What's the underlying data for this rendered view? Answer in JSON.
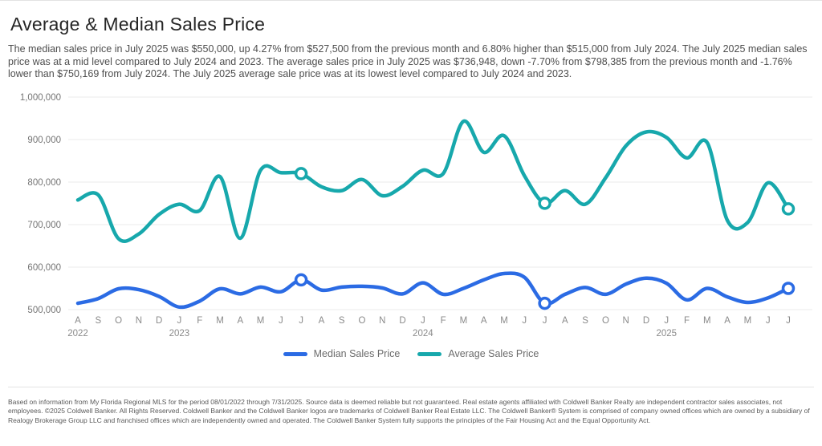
{
  "header": {
    "title": "Average & Median Sales Price",
    "description": "The median sales price in July 2025 was $550,000, up 4.27% from $527,500 from the previous month and 6.80% higher than $515,000 from July 2024. The July 2025 median sales price was at a mid level compared to July 2024 and 2023. The average sales price in July 2025 was $736,948, down -7.70% from $798,385 from the previous month and -1.76% lower than $750,169 from July 2024. The July 2025 average sale price was at its lowest level compared to July 2024 and 2023."
  },
  "chart_data": {
    "type": "line",
    "title": "Average & Median Sales Price",
    "categories": [
      "A",
      "S",
      "O",
      "N",
      "D",
      "J",
      "F",
      "M",
      "A",
      "M",
      "J",
      "J",
      "A",
      "S",
      "O",
      "N",
      "D",
      "J",
      "F",
      "M",
      "A",
      "M",
      "J",
      "J",
      "A",
      "S",
      "O",
      "N",
      "D",
      "J",
      "F",
      "M",
      "A",
      "M",
      "J",
      "J"
    ],
    "year_labels": [
      {
        "index": 0,
        "label": "2022"
      },
      {
        "index": 5,
        "label": "2023"
      },
      {
        "index": 17,
        "label": "2024"
      },
      {
        "index": 29,
        "label": "2025"
      }
    ],
    "series": [
      {
        "name": "Median Sales Price",
        "color": "#2B6BE4",
        "values": [
          515000,
          526000,
          549000,
          547000,
          531000,
          506000,
          520000,
          549000,
          537000,
          553000,
          542000,
          570000,
          546000,
          553000,
          555000,
          551000,
          537000,
          563000,
          536000,
          550000,
          570000,
          585000,
          576000,
          515000,
          536000,
          552000,
          536000,
          560000,
          574000,
          562000,
          523000,
          550000,
          530000,
          517000,
          527500,
          550000
        ]
      },
      {
        "name": "Average Sales Price",
        "color": "#17A8AC",
        "values": [
          758000,
          770000,
          667000,
          678000,
          724000,
          748000,
          733000,
          813000,
          668000,
          828000,
          822000,
          820000,
          789000,
          780000,
          806000,
          768000,
          790000,
          828000,
          820000,
          943000,
          870000,
          909000,
          815000,
          750169,
          780000,
          748000,
          810000,
          885000,
          918000,
          905000,
          857000,
          893000,
          710000,
          705000,
          798385,
          736948
        ]
      }
    ],
    "marker_indices": [
      11,
      23,
      35
    ],
    "yticks": [
      1000000,
      900000,
      800000,
      700000,
      600000,
      500000
    ],
    "ylim": [
      500000,
      1000000
    ],
    "grid": true,
    "legend_position": "bottom"
  },
  "footer": {
    "disclaimer": "Based on information from My Florida Regional MLS for the period 08/01/2022 through 7/31/2025. Source data is deemed reliable but not guaranteed. Real estate agents affiliated with Coldwell Banker Realty are independent contractor sales associates, not employees. ©2025 Coldwell Banker. All Rights Reserved. Coldwell Banker and the Coldwell Banker logos are trademarks of Coldwell Banker Real Estate LLC. The Coldwell Banker® System is comprised of company owned offices which are owned by a subsidiary of Realogy Brokerage Group LLC and franchised offices which are independently owned and operated. The Coldwell Banker System fully supports the principles of the Fair Housing Act and the Equal Opportunity Act."
  },
  "colors": {
    "median": "#2B6BE4",
    "average": "#17A8AC",
    "grid": "#ebebeb",
    "axis_text": "#8a8a8a",
    "tick_text": "#757575"
  }
}
